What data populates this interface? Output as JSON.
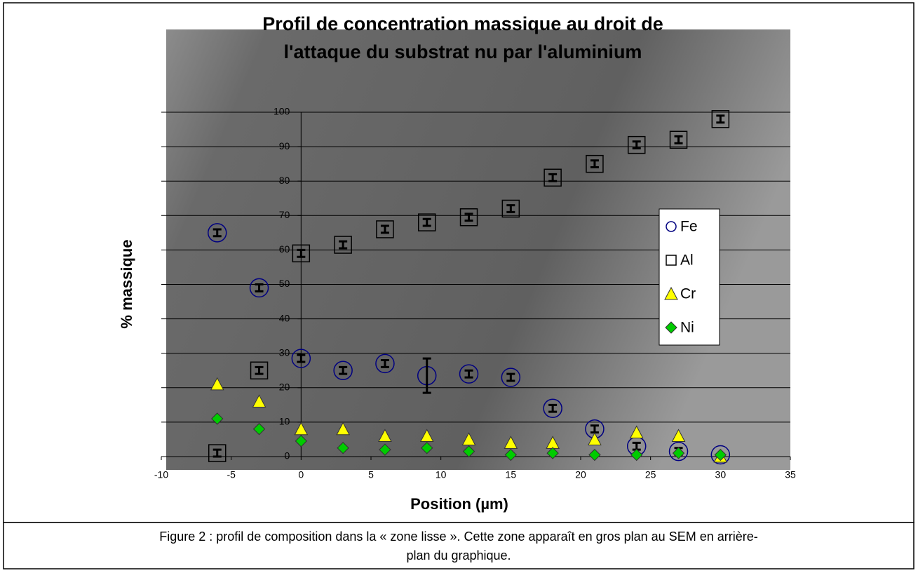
{
  "chart_data": {
    "type": "scatter",
    "title": [
      "Profil de concentration massique au droit de",
      "l'attaque du substrat nu par l'aluminium"
    ],
    "x_label": "Position (µm)",
    "y_label": "% massique",
    "x": [
      -6,
      -3,
      0,
      3,
      6,
      9,
      12,
      15,
      18,
      21,
      24,
      27,
      30
    ],
    "series": [
      {
        "name": "Fe",
        "color": "#000080",
        "marker": "circle",
        "values": [
          65,
          49,
          28.5,
          25,
          27,
          23.5,
          24,
          23,
          14,
          8,
          3,
          1.5,
          0.5
        ],
        "errors": [
          1,
          1,
          1,
          1,
          1,
          5,
          1,
          1,
          1,
          1,
          1,
          1,
          0
        ]
      },
      {
        "name": "Al",
        "color": "#000000",
        "marker": "square",
        "values": [
          1,
          25,
          59,
          61.5,
          66,
          68,
          69.5,
          72,
          81,
          85,
          90.5,
          92,
          98
        ],
        "errors": [
          1,
          1,
          1,
          1,
          1,
          1,
          1,
          1,
          1,
          1,
          1,
          1,
          1
        ]
      },
      {
        "name": "Cr",
        "color": "#ffff00",
        "marker": "triangle",
        "values": [
          21,
          16,
          8,
          8,
          6,
          6,
          5,
          4,
          4,
          5,
          7,
          6,
          0
        ]
      },
      {
        "name": "Ni",
        "color": "#00cc00",
        "marker": "diamond",
        "values": [
          11,
          8,
          4.5,
          2.5,
          2,
          2.5,
          1.5,
          0.5,
          1,
          0.5,
          0.5,
          1,
          0.5
        ]
      }
    ],
    "xlim": [
      -10,
      35
    ],
    "xticks": [
      -10,
      -5,
      0,
      5,
      10,
      15,
      20,
      25,
      30,
      35
    ],
    "ylim": [
      0,
      100
    ],
    "yticks": [
      0,
      10,
      20,
      30,
      40,
      50,
      60,
      70,
      80,
      90,
      100
    ],
    "grid": true,
    "legend": "right"
  },
  "caption": [
    "Figure 2 : profil de composition dans la « zone lisse ». Cette zone apparaît en gros plan au SEM en arrière-",
    "plan du graphique."
  ]
}
